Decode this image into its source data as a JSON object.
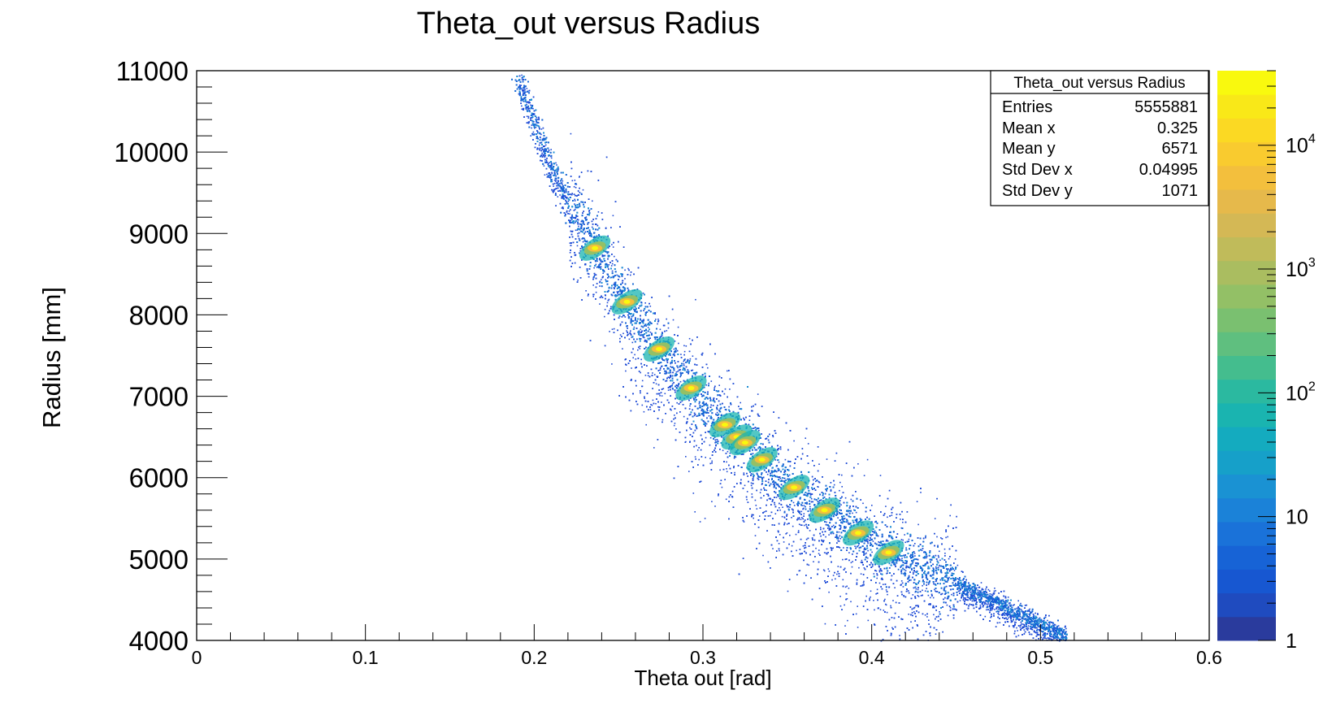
{
  "chart_data": {
    "type": "heatmap",
    "title": "Theta_out versus Radius",
    "xlabel": "Theta out [rad]",
    "ylabel": "Radius [mm]",
    "xlim": [
      0,
      0.6
    ],
    "ylim": [
      4000,
      11000
    ],
    "x_ticks": [
      "0",
      "0.1",
      "0.2",
      "0.3",
      "0.4",
      "0.5",
      "0.6"
    ],
    "y_ticks": [
      "4000",
      "5000",
      "6000",
      "7000",
      "8000",
      "9000",
      "10000",
      "11000"
    ],
    "z_scale": "log",
    "z_range": [
      1,
      40000
    ],
    "z_ticks": [
      {
        "base": "1",
        "exp": ""
      },
      {
        "base": "10",
        "exp": ""
      },
      {
        "base": "10",
        "exp": "2"
      },
      {
        "base": "10",
        "exp": "3"
      },
      {
        "base": "10",
        "exp": "4"
      }
    ],
    "colormap": [
      "#2a3b9d",
      "#1f4bbf",
      "#1757d1",
      "#1763d6",
      "#1a72d9",
      "#1b82d8",
      "#1a92d3",
      "#16a0c9",
      "#14abbf",
      "#1ab4b0",
      "#2bb9a0",
      "#44bd8e",
      "#5fbf7f",
      "#7ac070",
      "#93c066",
      "#aabd60",
      "#c0bb5a",
      "#d4b855",
      "#e6b94b",
      "#f3bf3d",
      "#f9cb2f",
      "#fbd923",
      "#f9e818",
      "#f9f90e"
    ],
    "ridge": [
      {
        "x": 0.19,
        "y": 10950
      },
      {
        "x": 0.21,
        "y": 9800
      },
      {
        "x": 0.236,
        "y": 8820
      },
      {
        "x": 0.255,
        "y": 8160
      },
      {
        "x": 0.274,
        "y": 7580
      },
      {
        "x": 0.293,
        "y": 7100
      },
      {
        "x": 0.313,
        "y": 6650
      },
      {
        "x": 0.325,
        "y": 6430
      },
      {
        "x": 0.335,
        "y": 6220
      },
      {
        "x": 0.354,
        "y": 5880
      },
      {
        "x": 0.372,
        "y": 5600
      },
      {
        "x": 0.392,
        "y": 5320
      },
      {
        "x": 0.41,
        "y": 5080
      },
      {
        "x": 0.45,
        "y": 4700
      },
      {
        "x": 0.515,
        "y": 4050
      }
    ],
    "hotspots": [
      {
        "x": 0.236,
        "y": 8820
      },
      {
        "x": 0.255,
        "y": 8160
      },
      {
        "x": 0.274,
        "y": 7580
      },
      {
        "x": 0.293,
        "y": 7100
      },
      {
        "x": 0.313,
        "y": 6650
      },
      {
        "x": 0.32,
        "y": 6500
      },
      {
        "x": 0.325,
        "y": 6430
      },
      {
        "x": 0.335,
        "y": 6220
      },
      {
        "x": 0.354,
        "y": 5880
      },
      {
        "x": 0.372,
        "y": 5600
      },
      {
        "x": 0.392,
        "y": 5320
      },
      {
        "x": 0.41,
        "y": 5080
      }
    ],
    "stats": {
      "title": "Theta_out versus Radius",
      "rows": [
        {
          "label": "Entries",
          "value": "5555881"
        },
        {
          "label": "Mean x",
          "value": "0.325"
        },
        {
          "label": "Mean y",
          "value": "6571"
        },
        {
          "label": "Std Dev x",
          "value": "0.04995"
        },
        {
          "label": "Std Dev y",
          "value": "1071"
        }
      ]
    }
  }
}
